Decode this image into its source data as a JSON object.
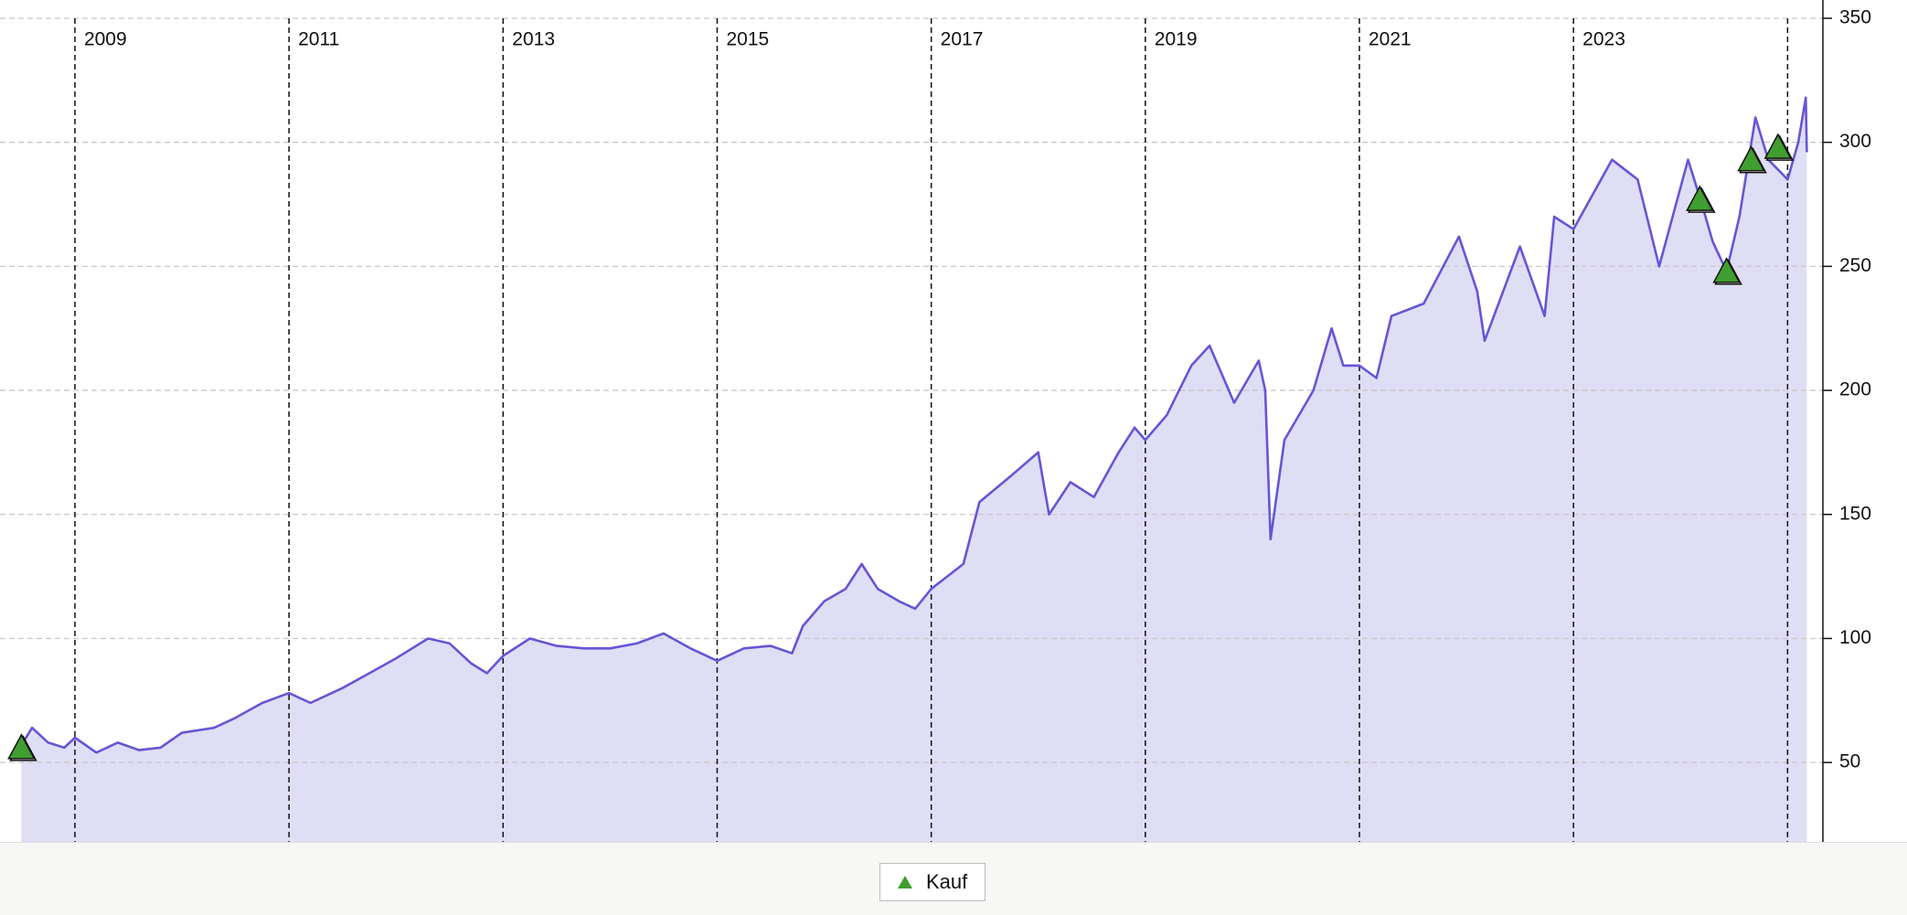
{
  "chart_data": {
    "type": "area-line",
    "x": [
      2008.5,
      2008.6,
      2008.75,
      2008.9,
      2009.0,
      2009.2,
      2009.4,
      2009.6,
      2009.8,
      2010.0,
      2010.3,
      2010.5,
      2010.75,
      2011.0,
      2011.2,
      2011.5,
      2011.75,
      2012.0,
      2012.3,
      2012.5,
      2012.7,
      2012.85,
      2013.0,
      2013.25,
      2013.5,
      2013.75,
      2014.0,
      2014.25,
      2014.5,
      2014.75,
      2015.0,
      2015.25,
      2015.5,
      2015.7,
      2015.8,
      2016.0,
      2016.2,
      2016.35,
      2016.5,
      2016.7,
      2016.85,
      2017.0,
      2017.15,
      2017.3,
      2017.45,
      2017.73,
      2018.0,
      2018.1,
      2018.3,
      2018.52,
      2018.75,
      2018.9,
      2019.0,
      2019.2,
      2019.43,
      2019.6,
      2019.83,
      2020.06,
      2020.12,
      2020.17,
      2020.3,
      2020.57,
      2020.74,
      2020.85,
      2021.0,
      2021.16,
      2021.3,
      2021.6,
      2021.93,
      2022.1,
      2022.17,
      2022.5,
      2022.73,
      2022.82,
      2023.0,
      2023.36,
      2023.6,
      2023.8,
      2024.07,
      2024.2,
      2024.3,
      2024.43,
      2024.55,
      2024.7,
      2024.82,
      2025.0,
      2025.1,
      2025.17,
      2025.18
    ],
    "values": [
      57,
      64,
      58,
      56,
      60,
      54,
      58,
      55,
      56,
      62,
      64,
      68,
      74,
      78,
      74,
      80,
      86,
      92,
      100,
      98,
      90,
      86,
      93,
      100,
      97,
      96,
      96,
      98,
      102,
      96,
      91,
      96,
      97,
      94,
      105,
      115,
      120,
      130,
      120,
      115,
      112,
      120,
      125,
      130,
      155,
      165,
      175,
      150,
      163,
      157,
      175,
      185,
      180,
      190,
      210,
      218,
      195,
      212,
      200,
      140,
      180,
      200,
      225,
      210,
      210,
      205,
      230,
      235,
      262,
      240,
      220,
      258,
      230,
      270,
      265,
      293,
      285,
      250,
      293,
      275,
      260,
      248,
      270,
      310,
      293,
      285,
      300,
      318,
      296
    ],
    "color": "#6655d6",
    "fill_color": "#e0def5",
    "markers": {
      "name": "Kauf",
      "color": "#3f9e2f",
      "x": [
        2008.5,
        2024.18,
        2024.43,
        2024.66,
        2024.91
      ],
      "values": [
        56,
        277,
        248,
        293,
        298
      ]
    },
    "xlim": [
      2008.3,
      2025.33
    ],
    "xticks": [
      2009,
      2011,
      2013,
      2015,
      2017,
      2019,
      2021,
      2023
    ],
    "xgrid": [
      2009,
      2011,
      2013,
      2015,
      2017,
      2019,
      2021,
      2023,
      2025
    ],
    "ylim": [
      18,
      350
    ],
    "yticks": [
      50,
      100,
      150,
      200,
      250,
      300,
      350
    ],
    "grid": true
  }
}
